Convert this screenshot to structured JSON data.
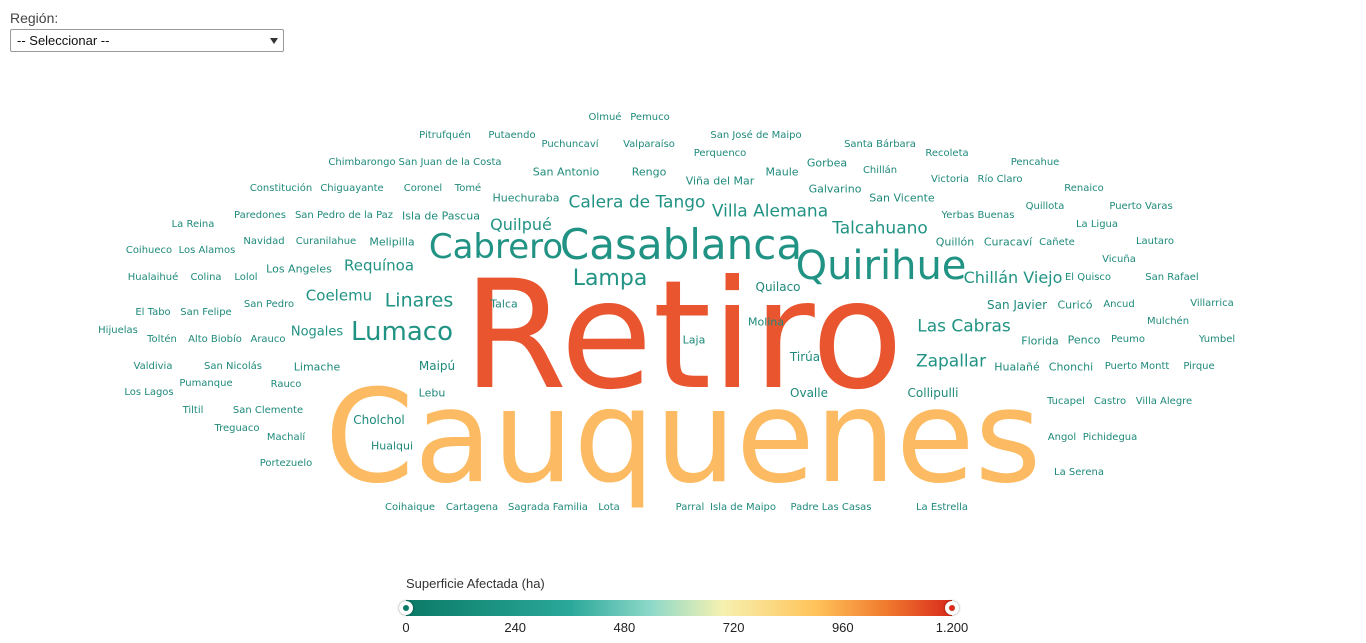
{
  "filter": {
    "label": "Región:",
    "selected": "-- Seleccionar --"
  },
  "words": [
    {
      "text": "Retiro",
      "color": "#e8552f",
      "val": 1200
    },
    {
      "text": "Cauquenes",
      "color": "#fcbb62",
      "val": 900
    },
    {
      "text": "Casablanca",
      "color": "#219384",
      "val": 300
    },
    {
      "text": "Quirihue",
      "color": "#219384",
      "val": 300
    },
    {
      "text": "Cabrero",
      "color": "#219384",
      "val": 280
    },
    {
      "text": "Lumaco",
      "color": "#219384",
      "val": 220
    },
    {
      "text": "Lampa",
      "color": "#219384",
      "val": 200
    },
    {
      "text": "Villa Alemana",
      "color": "#219384",
      "val": 170
    },
    {
      "text": "Calera de Tango",
      "color": "#219384",
      "val": 160
    },
    {
      "text": "Las Cabras",
      "color": "#219384",
      "val": 170
    },
    {
      "text": "Zapallar",
      "color": "#219384",
      "val": 170
    },
    {
      "text": "Talcahuano",
      "color": "#219384",
      "val": 160
    },
    {
      "text": "Chillán Viejo",
      "color": "#219384",
      "val": 150
    },
    {
      "text": "Linares",
      "color": "#219384",
      "val": 170
    },
    {
      "text": "Quilpué",
      "color": "#219384",
      "val": 150
    },
    {
      "text": "Requínoa",
      "color": "#219384",
      "val": 150
    },
    {
      "text": "Coelemu",
      "color": "#219384",
      "val": 150
    },
    {
      "text": "Nogales",
      "color": "#219384",
      "val": 110
    },
    {
      "text": "Huechuraba",
      "color": "#1f8a7b",
      "val": 90
    },
    {
      "text": "San Javier",
      "color": "#1f8a7b",
      "val": 100
    },
    {
      "text": "Tirúa",
      "color": "#1f8a7b",
      "val": 100
    },
    {
      "text": "Quilaco",
      "color": "#1f8a7b",
      "val": 100
    },
    {
      "text": "Ovalle",
      "color": "#1f8a7b",
      "val": 100
    },
    {
      "text": "Maipú",
      "color": "#1f8a7b",
      "val": 100
    },
    {
      "text": "Cholchol",
      "color": "#1f8a7b",
      "val": 100
    },
    {
      "text": "Collipulli",
      "color": "#1f8a7b",
      "val": 100
    },
    {
      "text": "Hualañé",
      "color": "#1f8a7b",
      "val": 100
    },
    {
      "text": "Limache",
      "color": "#1f8a7b",
      "val": 100
    },
    {
      "text": "Florida",
      "color": "#1f8a7b",
      "val": 100
    },
    {
      "text": "Melipilla",
      "color": "#1f8a7b",
      "val": 95
    },
    {
      "text": "Chonchi",
      "color": "#1f8a7b",
      "val": 90
    },
    {
      "text": "Curicó",
      "color": "#1f8a7b",
      "val": 90
    },
    {
      "text": "Quillón",
      "color": "#1f8a7b",
      "val": 90
    },
    {
      "text": "Curacaví",
      "color": "#1f8a7b",
      "val": 90
    },
    {
      "text": "Maule",
      "color": "#1f8a7b",
      "val": 90
    },
    {
      "text": "Gorbea",
      "color": "#1f8a7b",
      "val": 90
    },
    {
      "text": "Galvarino",
      "color": "#1f8a7b",
      "val": 90
    },
    {
      "text": "San Vicente",
      "color": "#1f8a7b",
      "val": 90
    },
    {
      "text": "Viña del Mar",
      "color": "#1f8a7b",
      "val": 90
    },
    {
      "text": "Los Angeles",
      "color": "#1f8a7b",
      "val": 90
    },
    {
      "text": "Rengo",
      "color": "#1f8a7b",
      "val": 90
    },
    {
      "text": "San Antonio",
      "color": "#1f8a7b",
      "val": 90
    },
    {
      "text": "Isla de Pascua",
      "color": "#1f8a7b",
      "val": 90
    },
    {
      "text": "Penco",
      "color": "#1f8a7b",
      "val": 85
    },
    {
      "text": "Hualqui",
      "color": "#1f8a7b",
      "val": 80
    },
    {
      "text": "Lebu",
      "color": "#1f8a7b",
      "val": 80
    },
    {
      "text": "Laja",
      "color": "#1f8a7b",
      "val": 80
    },
    {
      "text": "Talca",
      "color": "#1f8a7b",
      "val": 80
    },
    {
      "text": "Molina",
      "color": "#1f8a7b",
      "val": 80
    },
    {
      "text": "Olmué",
      "color": "#1f8a7b",
      "val": 80
    },
    {
      "text": "Pemuco",
      "color": "#1f8a7b",
      "val": 80
    },
    {
      "text": "Pitrufquén",
      "color": "#1f8a7b",
      "val": 80
    },
    {
      "text": "Putaendo",
      "color": "#1f8a7b",
      "val": 80
    },
    {
      "text": "Puchuncaví",
      "color": "#1f8a7b",
      "val": 80
    },
    {
      "text": "Valparaíso",
      "color": "#1f8a7b",
      "val": 80
    },
    {
      "text": "San José de Maipo",
      "color": "#1f8a7b",
      "val": 80
    },
    {
      "text": "Santa Bárbara",
      "color": "#1f8a7b",
      "val": 80
    },
    {
      "text": "Perquenco",
      "color": "#1f8a7b",
      "val": 80
    },
    {
      "text": "Recoleta",
      "color": "#1f8a7b",
      "val": 80
    },
    {
      "text": "Chimbarongo",
      "color": "#1f8a7b",
      "val": 80
    },
    {
      "text": "San Juan de la Costa",
      "color": "#1f8a7b",
      "val": 80
    },
    {
      "text": "Chillán",
      "color": "#1f8a7b",
      "val": 80
    },
    {
      "text": "Pencahue",
      "color": "#1f8a7b",
      "val": 80
    },
    {
      "text": "Victoria",
      "color": "#1f8a7b",
      "val": 80
    },
    {
      "text": "Río Claro",
      "color": "#1f8a7b",
      "val": 80
    },
    {
      "text": "Constitución",
      "color": "#1f8a7b",
      "val": 80
    },
    {
      "text": "Chiguayante",
      "color": "#1f8a7b",
      "val": 80
    },
    {
      "text": "Coronel",
      "color": "#1f8a7b",
      "val": 80
    },
    {
      "text": "Tomé",
      "color": "#1f8a7b",
      "val": 80
    },
    {
      "text": "Renaico",
      "color": "#1f8a7b",
      "val": 80
    },
    {
      "text": "Quillota",
      "color": "#1f8a7b",
      "val": 80
    },
    {
      "text": "Puerto Varas",
      "color": "#1f8a7b",
      "val": 80
    },
    {
      "text": "Paredones",
      "color": "#1f8a7b",
      "val": 80
    },
    {
      "text": "San Pedro de la Paz",
      "color": "#1f8a7b",
      "val": 80
    },
    {
      "text": "Yerbas Buenas",
      "color": "#1f8a7b",
      "val": 80
    },
    {
      "text": "La Ligua",
      "color": "#1f8a7b",
      "val": 80
    },
    {
      "text": "La Reina",
      "color": "#1f8a7b",
      "val": 80
    },
    {
      "text": "Cañete",
      "color": "#1f8a7b",
      "val": 80
    },
    {
      "text": "Lautaro",
      "color": "#1f8a7b",
      "val": 80
    },
    {
      "text": "Navidad",
      "color": "#1f8a7b",
      "val": 80
    },
    {
      "text": "Curanilahue",
      "color": "#1f8a7b",
      "val": 80
    },
    {
      "text": "Coihueco",
      "color": "#1f8a7b",
      "val": 80
    },
    {
      "text": "Los Alamos",
      "color": "#1f8a7b",
      "val": 80
    },
    {
      "text": "Vicuña",
      "color": "#1f8a7b",
      "val": 80
    },
    {
      "text": "Hualaihué",
      "color": "#1f8a7b",
      "val": 80
    },
    {
      "text": "Colina",
      "color": "#1f8a7b",
      "val": 80
    },
    {
      "text": "Lolol",
      "color": "#1f8a7b",
      "val": 80
    },
    {
      "text": "El Quisco",
      "color": "#1f8a7b",
      "val": 80
    },
    {
      "text": "San Rafael",
      "color": "#1f8a7b",
      "val": 80
    },
    {
      "text": "San Pedro",
      "color": "#1f8a7b",
      "val": 80
    },
    {
      "text": "Ancud",
      "color": "#1f8a7b",
      "val": 80
    },
    {
      "text": "Villarrica",
      "color": "#1f8a7b",
      "val": 80
    },
    {
      "text": "El Tabo",
      "color": "#1f8a7b",
      "val": 80
    },
    {
      "text": "San Felipe",
      "color": "#1f8a7b",
      "val": 80
    },
    {
      "text": "Mulchén",
      "color": "#1f8a7b",
      "val": 80
    },
    {
      "text": "Hijuelas",
      "color": "#1f8a7b",
      "val": 80
    },
    {
      "text": "Toltén",
      "color": "#1f8a7b",
      "val": 80
    },
    {
      "text": "Alto Biobío",
      "color": "#1f8a7b",
      "val": 80
    },
    {
      "text": "Arauco",
      "color": "#1f8a7b",
      "val": 80
    },
    {
      "text": "Peumo",
      "color": "#1f8a7b",
      "val": 80
    },
    {
      "text": "Yumbel",
      "color": "#1f8a7b",
      "val": 80
    },
    {
      "text": "Valdivia",
      "color": "#1f8a7b",
      "val": 80
    },
    {
      "text": "San Nicolás",
      "color": "#1f8a7b",
      "val": 80
    },
    {
      "text": "Puerto Montt",
      "color": "#1f8a7b",
      "val": 80
    },
    {
      "text": "Pirque",
      "color": "#1f8a7b",
      "val": 80
    },
    {
      "text": "Pumanque",
      "color": "#1f8a7b",
      "val": 80
    },
    {
      "text": "Rauco",
      "color": "#1f8a7b",
      "val": 80
    },
    {
      "text": "Los Lagos",
      "color": "#1f8a7b",
      "val": 80
    },
    {
      "text": "Tucapel",
      "color": "#1f8a7b",
      "val": 80
    },
    {
      "text": "Castro",
      "color": "#1f8a7b",
      "val": 80
    },
    {
      "text": "Villa Alegre",
      "color": "#1f8a7b",
      "val": 80
    },
    {
      "text": "Tiltil",
      "color": "#1f8a7b",
      "val": 80
    },
    {
      "text": "San Clemente",
      "color": "#1f8a7b",
      "val": 80
    },
    {
      "text": "Treguaco",
      "color": "#1f8a7b",
      "val": 80
    },
    {
      "text": "Machalí",
      "color": "#1f8a7b",
      "val": 80
    },
    {
      "text": "Angol",
      "color": "#1f8a7b",
      "val": 80
    },
    {
      "text": "Pichidegua",
      "color": "#1f8a7b",
      "val": 80
    },
    {
      "text": "Portezuelo",
      "color": "#1f8a7b",
      "val": 80
    },
    {
      "text": "La Serena",
      "color": "#1f8a7b",
      "val": 80
    },
    {
      "text": "Coihaique",
      "color": "#1f8a7b",
      "val": 80
    },
    {
      "text": "Cartagena",
      "color": "#1f8a7b",
      "val": 80
    },
    {
      "text": "Sagrada Familia",
      "color": "#1f8a7b",
      "val": 80
    },
    {
      "text": "Lota",
      "color": "#1f8a7b",
      "val": 80
    },
    {
      "text": "Parral",
      "color": "#1f8a7b",
      "val": 80
    },
    {
      "text": "Isla de Maipo",
      "color": "#1f8a7b",
      "val": 80
    },
    {
      "text": "Padre Las Casas",
      "color": "#1f8a7b",
      "val": 80
    },
    {
      "text": "La Estrella",
      "color": "#1f8a7b",
      "val": 80
    }
  ],
  "legend": {
    "title": "Superficie Afectada (ha)",
    "ticks": [
      "0",
      "240",
      "480",
      "720",
      "960",
      "1.200"
    ],
    "range_min": 0,
    "range_max": 1200,
    "low_color": "#0b7a66",
    "high_color": "#d92a1c"
  }
}
